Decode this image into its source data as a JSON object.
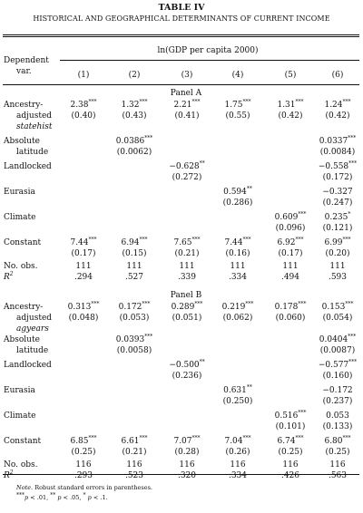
{
  "title": "TABLE IV",
  "subtitle": "HISTORICAL AND GEOGRAPHICAL DETERMINANTS OF CURRENT INCOME",
  "dep_var_label": [
    "Dependent",
    "var."
  ],
  "spanner": "ln(GDP per capita 2000)",
  "columns": [
    "(1)",
    "(2)",
    "(3)",
    "(4)",
    "(5)",
    "(6)"
  ],
  "panels": [
    {
      "label": "Panel A",
      "rows": [
        {
          "label": [
            "Ancestry-",
            "adjusted",
            "statehist"
          ],
          "coef": [
            "2.38***",
            "1.32***",
            "2.21***",
            "1.75***",
            "1.31***",
            "1.24***"
          ],
          "se": [
            "(0.40)",
            "(0.43)",
            "(0.41)",
            "(0.55)",
            "(0.42)",
            "(0.42)"
          ]
        },
        {
          "label": [
            "Absolute",
            "latitude"
          ],
          "coef": [
            "",
            "0.0386***",
            "",
            "",
            "",
            "0.0337***"
          ],
          "se": [
            "",
            "(0.0062)",
            "",
            "",
            "",
            "(0.0084)"
          ]
        },
        {
          "label": [
            "Landlocked"
          ],
          "coef": [
            "",
            "",
            "−0.628**",
            "",
            "",
            "−0.558***"
          ],
          "se": [
            "",
            "",
            "(0.272)",
            "",
            "",
            "(0.172)"
          ]
        },
        {
          "label": [
            "Eurasia"
          ],
          "coef": [
            "",
            "",
            "",
            "0.594**",
            "",
            "−0.327"
          ],
          "se": [
            "",
            "",
            "",
            "(0.286)",
            "",
            "(0.247)"
          ]
        },
        {
          "label": [
            "Climate"
          ],
          "coef": [
            "",
            "",
            "",
            "",
            "0.609***",
            "0.235*"
          ],
          "se": [
            "",
            "",
            "",
            "",
            "(0.096)",
            "(0.121)"
          ]
        },
        {
          "label": [
            "Constant"
          ],
          "coef": [
            "7.44***",
            "6.94***",
            "7.65***",
            "7.44***",
            "6.92***",
            "6.99***"
          ],
          "se": [
            "(0.17)",
            "(0.15)",
            "(0.21)",
            "(0.16)",
            "(0.17)",
            "(0.20)"
          ]
        }
      ],
      "nobs_label": "No. obs.",
      "nobs": [
        "111",
        "111",
        "111",
        "111",
        "111",
        "111"
      ],
      "r2_label": "R2",
      "r2": [
        ".294",
        ".527",
        ".339",
        ".334",
        ".494",
        ".593"
      ]
    },
    {
      "label": "Panel B",
      "rows": [
        {
          "label": [
            "Ancestry-",
            "adjusted",
            "agyears"
          ],
          "coef": [
            "0.313***",
            "0.172***",
            "0.289***",
            "0.219***",
            "0.178***",
            "0.153***"
          ],
          "se": [
            "(0.048)",
            "(0.053)",
            "(0.051)",
            "(0.062)",
            "(0.060)",
            "(0.054)"
          ]
        },
        {
          "label": [
            "Absolute",
            "latitude"
          ],
          "coef": [
            "",
            "0.0393***",
            "",
            "",
            "",
            "0.0404***"
          ],
          "se": [
            "",
            "(0.0058)",
            "",
            "",
            "",
            "(0.0087)"
          ]
        },
        {
          "label": [
            "Landlocked"
          ],
          "coef": [
            "",
            "",
            "−0.500**",
            "",
            "",
            "−0.577***"
          ],
          "se": [
            "",
            "",
            "(0.236)",
            "",
            "",
            "(0.160)"
          ]
        },
        {
          "label": [
            "Eurasia"
          ],
          "coef": [
            "",
            "",
            "",
            "0.631**",
            "",
            "−0.172"
          ],
          "se": [
            "",
            "",
            "",
            "(0.250)",
            "",
            "(0.237)"
          ]
        },
        {
          "label": [
            "Climate"
          ],
          "coef": [
            "",
            "",
            "",
            "",
            "0.516***",
            "0.053"
          ],
          "se": [
            "",
            "",
            "",
            "",
            "(0.101)",
            "(0.133)"
          ]
        },
        {
          "label": [
            "Constant"
          ],
          "coef": [
            "6.85***",
            "6.61***",
            "7.07***",
            "7.04***",
            "6.74***",
            "6.80***"
          ],
          "se": [
            "(0.25)",
            "(0.21)",
            "(0.28)",
            "(0.26)",
            "(0.25)",
            "(0.25)"
          ]
        }
      ],
      "nobs_label": "No. obs.",
      "nobs": [
        "116",
        "116",
        "116",
        "116",
        "116",
        "116"
      ],
      "r2_label": "R2",
      "r2": [
        ".293",
        ".523",
        ".320",
        ".334",
        ".426",
        ".563"
      ]
    }
  ],
  "note": "Note. Robust standard errors in parentheses.",
  "significance": "***p < .01, ** p < .05, * p < .1."
}
